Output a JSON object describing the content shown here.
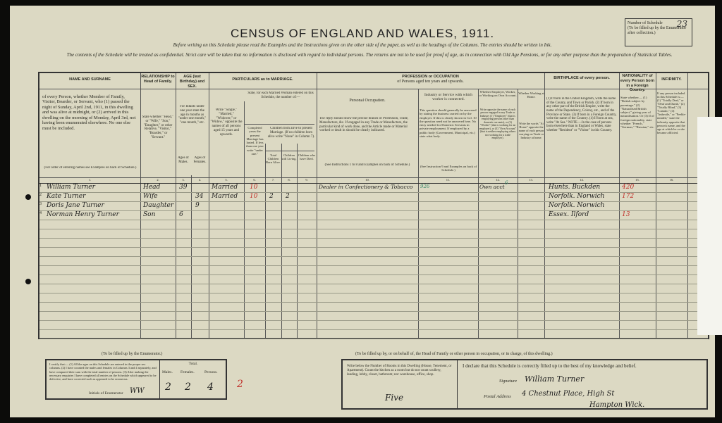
{
  "document": {
    "title": "CENSUS OF ENGLAND AND WALES, 1911.",
    "instruction_line": "Before writing on this Schedule please read the Examples and the Instructions given on the other side of the paper, as well as the headings of the Columns. The entries should be written in Ink.",
    "confidential_line": "The contents of the Schedule will be treated as confidential. Strict care will be taken that no information is disclosed with regard to individual persons. The returns are not to be used for proof of age, as in connection with Old Age Pensions, or for any other purpose than the preparation of Statistical Tables.",
    "schedule_label": "Number of Schedule",
    "schedule_note": "(To be filled up by the Enumerator after collection.)",
    "schedule_number": "23"
  },
  "columns": {
    "name": {
      "heading": "NAME AND SURNAME",
      "text": "of every Person, whether Member of Family, Visitor, Boarder, or Servant, who (1) passed the night of Sunday, April 2nd, 1911, in this dwelling and was alive at midnight, or (2) arrived in this dwelling on the morning of Monday, April 3rd, not having been enumerated elsewhere. No one else must be included.",
      "note": "(For order of entering names see Examples on back of Schedule.)",
      "num": "1."
    },
    "relationship": {
      "heading": "RELATIONSHIP to Head of Family.",
      "text": "State whether \"Head,\" or \"Wife,\" \"Son,\" \"Daughter,\" or other Relative, \"Visitor,\" \"Boarder,\" or \"Servant.\"",
      "num": "2."
    },
    "age": {
      "heading": "AGE (last Birthday) and SEX.",
      "text": "For Infants under one year state the age in months as \"under one month,\" \"one month,\" etc.",
      "males": "Ages of Males.",
      "females": "Ages of Females.",
      "num_m": "3.",
      "num_f": "4."
    },
    "marriage": {
      "heading": "PARTICULARS as to MARRIAGE.",
      "status": "Write \"Single,\" \"Married,\" \"Widower,\" or \"Widow,\" opposite the names of all persons aged 15 years and upwards.",
      "married_woman": "State, for each Married Woman entered on this Schedule, the number of:—",
      "years": "Completed years the present Marriage has lasted. If less than one year write \"under one.\"",
      "children": "Children born alive to present Marriage. (If no children born alive write \"None\" in Column 7).",
      "total": "Total Children Born Alive.",
      "living": "Children still Living.",
      "died": "Children who have Died.",
      "nums": [
        "5.",
        "6.",
        "7.",
        "8.",
        "9."
      ]
    },
    "occupation": {
      "heading": "PROFESSION or OCCUPATION",
      "subheading": "of Persons aged ten years and upwards.",
      "personal": "Personal Occupation.",
      "personal_text": "The reply should show the precise branch of Profession, Trade, Manufacture, &c. If engaged in any Trade or Manufacture, the particular kind of work done, and the Article made or Material worked or dealt in should be clearly indicated.",
      "personal_note": "(See Instructions 1 to 8 and Examples on back of Schedule.)",
      "industry": "Industry or Service with which worker is connected.",
      "industry_text": "This question should generally be answered by stating the business carried on by the employer. If this is clearly shown in Col. 10 the question need not be answered here. No entry needed for Domestic Servants in private employment. If employed by a public body (Government, Municipal, etc.) state what body.",
      "industry_note": "(See Instruction 9 and Examples on back of Schedule.)",
      "employer": "Whether Employer, Worker, or Working on Own Account.",
      "employer_text": "Write opposite the name of each person engaged in any Trade or Industry (1) \"Employer\" (that is employing persons other than domestic servants), or (2) \"Worker\" (that is working for an employer), or (3) \"Own Account\" (that is neither employing others nor working for a trade employer).",
      "home": "Whether Working at Home.",
      "home_text": "Write the words \"At Home\" opposite the name of each person carrying on Trade or Industry at home.",
      "nums": [
        "10.",
        "11.",
        "12.",
        "13."
      ]
    },
    "birthplace": {
      "heading": "BIRTHPLACE of every person.",
      "text": "(1) If born in the United Kingdom, write the name of the County, and Town or Parish. (2) If born in any other part of the British Empire, write the name of the Dependency, Colony, etc., and of the Province or State. (3) If born in a Foreign Country, write the name of the Country. (4) If born at sea, write \"At Sea.\" NOTE.—In the case of persons born elsewhere than in England or Wales, state whether \"Resident\" or \"Visitor\" in this Country.",
      "num": "14."
    },
    "nationality": {
      "heading": "NATIONALITY of every Person born in a Foreign Country.",
      "text": "State whether:— (1) \"British subject by parentage.\" (2) \"Naturalised British subject,\" giving year of naturalisation. Or (3) If of foreign nationality, state whether \"French,\" \"German,\" \"Russian,\" etc.",
      "num": "15."
    },
    "infirmity": {
      "heading": "INFIRMITY.",
      "text": "If any person included in this Schedule is:— (1) \"Totally Deaf,\" or \"Deaf and Dumb,\" (2) \"Totally Blind,\" (3) \"Lunatic,\" (4) \"Imbecile,\" or \"Feeble-minded,\" state the infirmity opposite that person's name, and the age at which he or she became afflicted.",
      "num": "16."
    }
  },
  "rows": [
    {
      "n": "1",
      "name": "William Turner",
      "rel": "Head",
      "age_m": "39",
      "age_f": "",
      "status": "Married",
      "years": "10",
      "total": "",
      "living": "",
      "died": "",
      "occupation": "Dealer in Confectionery & Tobacco",
      "occ_code": "926",
      "employer": "Own acct",
      "emp_code": "6",
      "birthplace": "Hunts. Buckden",
      "bp_code": "420"
    },
    {
      "n": "2",
      "name": "Kate Turner",
      "rel": "Wife",
      "age_m": "",
      "age_f": "34",
      "status": "Married",
      "years": "10",
      "total": "2",
      "living": "2",
      "died": "",
      "occupation": "",
      "occ_code": "",
      "employer": "",
      "emp_code": "",
      "birthplace": "Norfolk. Norwich",
      "bp_code": "172"
    },
    {
      "n": "3",
      "name": "Doris Jane Turner",
      "rel": "Daughter",
      "age_m": "",
      "age_f": "9",
      "status": "",
      "years": "",
      "total": "",
      "living": "",
      "died": "",
      "occupation": "",
      "occ_code": "",
      "employer": "",
      "emp_code": "",
      "birthplace": "Norfolk. Norwich",
      "bp_code": ""
    },
    {
      "n": "4",
      "name": "Norman Henry Turner",
      "rel": "Son",
      "age_m": "6",
      "age_f": "",
      "status": "",
      "years": "",
      "total": "",
      "living": "",
      "died": "",
      "occupation": "",
      "occ_code": "",
      "employer": "",
      "emp_code": "",
      "birthplace": "Essex. Ilford",
      "bp_code": "13"
    }
  ],
  "enumerator": {
    "caption": "(To be filled up by the Enumerator.)",
    "certify": "I certify that:— (1) All the ages on this Schedule are entered in the proper sex columns. (2) I have counted the males and females in Columns 3 and 4 separately, and have compared their sum with the total number of persons. (3) After making the necessary enquiries I have completed all entries on the Schedule which appeared to be defective, and have corrected such as appeared to be erroneous.",
    "initials_label": "Initials of Enumerator",
    "initials": "WW",
    "total_label": "Total.",
    "males_label": "Males.",
    "females_label": "Females.",
    "persons_label": "Persons.",
    "males": "2",
    "females": "2",
    "persons": "4",
    "red_mark": "2"
  },
  "householder": {
    "caption": "(To be filled up by, or on behalf of, the Head of Family or other person in occupation, or in charge, of this dwelling.)",
    "rooms_text": "Write below the Number of Rooms in this Dwelling (House, Tenement, or Apartment). Count the kitchen as a room but do not count scullery, landing, lobby, closet, bathroom; nor warehouse, office, shop.",
    "rooms": "Five",
    "declaration": "I declare that this Schedule is correctly filled up to the best of my knowledge and belief.",
    "signature_label": "Signature",
    "signature": "William Turner",
    "address_label": "Postal Address",
    "address_line1": "4 Chestnut Place, High St",
    "address_line2": "Hampton Wick."
  }
}
